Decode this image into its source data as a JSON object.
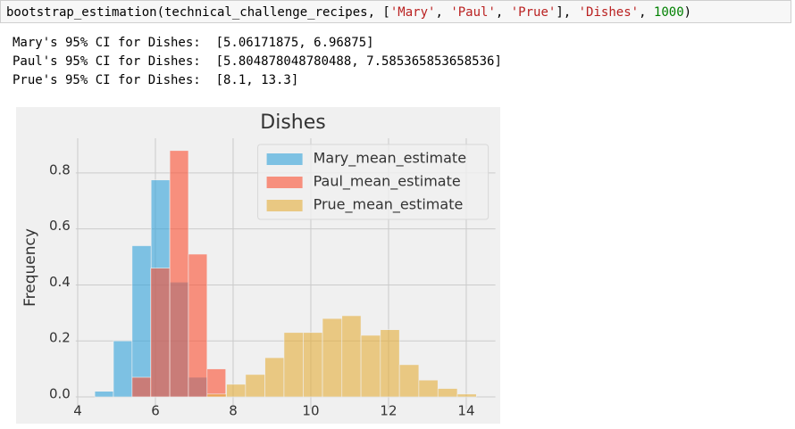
{
  "code": [
    "bootstrap_estimation(technical_challenge_recipes, [",
    "'Mary'",
    ", ",
    "'Paul'",
    ", ",
    "'Prue'",
    "], ",
    "'Dishes'",
    ", ",
    "1000",
    ")"
  ],
  "output": [
    "Mary's 95% CI for Dishes:  [5.06171875, 6.96875]",
    "Paul's 95% CI for Dishes:  [5.804878048780488, 7.585365853658536]",
    "Prue's 95% CI for Dishes:  [8.1, 13.3]"
  ],
  "chart_data": {
    "type": "histogram",
    "title": "Dishes",
    "ylabel": "Frequency",
    "xlim": [
      3.95,
      14.75
    ],
    "xticks": [
      4,
      6,
      8,
      10,
      12,
      14
    ],
    "ylim": [
      -0.044,
      0.924
    ],
    "yticks": [
      {
        "value": 0,
        "label": "0.0"
      },
      0.2,
      0.4,
      0.6,
      0.8
    ],
    "grid": true,
    "legend": "upper right",
    "series": [
      {
        "name": "Mary_mean_estimate",
        "color": "#30a2da",
        "bins": [
          4.44,
          4.92,
          5.4,
          5.89,
          6.37,
          6.85,
          7.33
        ],
        "values": [
          0.02,
          0.2,
          0.54,
          0.775,
          0.41,
          0.07
        ]
      },
      {
        "name": "Paul_mean_estimate",
        "color": "#fc4f30",
        "bins": [
          5.4,
          5.88,
          6.37,
          6.85,
          7.33,
          7.81
        ],
        "values": [
          0.07,
          0.46,
          0.88,
          0.51,
          0.1
        ]
      },
      {
        "name": "Prue_mean_estimate",
        "color": "#e5ae38",
        "bins": [
          7.33,
          7.83,
          8.32,
          8.82,
          9.31,
          9.81,
          10.3,
          10.8,
          11.29,
          11.79,
          12.28,
          12.78,
          13.27,
          13.77,
          14.26
        ],
        "values": [
          0.01,
          0.045,
          0.08,
          0.14,
          0.23,
          0.23,
          0.28,
          0.29,
          0.22,
          0.24,
          0.115,
          0.06,
          0.03,
          0.01
        ]
      }
    ]
  }
}
